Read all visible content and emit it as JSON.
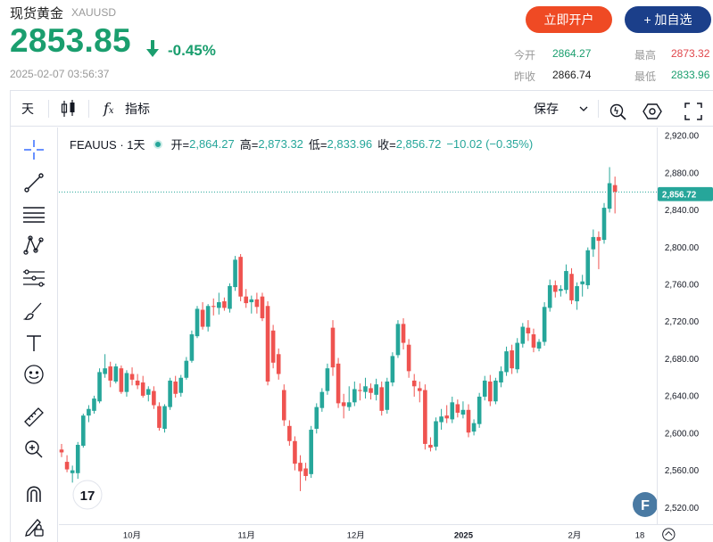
{
  "header": {
    "title": "现货黄金",
    "symbol": "XAUUSD",
    "price": "2853.85",
    "change_pct": "-0.45%",
    "timestamp": "2025-02-07 03:56:37",
    "open_account_label": "立即开户",
    "watchlist_label": "+ 加自选"
  },
  "stats": {
    "open_label": "今开",
    "open": "2864.27",
    "prev_close_label": "昨收",
    "prev_close": "2866.74",
    "high_label": "最高",
    "high": "2873.32",
    "low_label": "最低",
    "low": "2833.96"
  },
  "toolbar": {
    "interval": "天",
    "indicators_label": "指标",
    "save_label": "保存"
  },
  "legend": {
    "symbol": "FEAUUS · 1天",
    "open_label": "开=",
    "open": "2,864.27",
    "high_label": "高=",
    "high": "2,873.32",
    "low_label": "低=",
    "low": "2,833.96",
    "close_label": "收=",
    "close": "2,856.72",
    "change": "−10.02 (−0.35%)"
  },
  "colors": {
    "up": "#26a69a",
    "down": "#ef5350",
    "accent_green": "#1a9e6e",
    "accent_red": "#ef4a24",
    "brand_blue": "#1b3f8a"
  },
  "chart_data": {
    "type": "candlestick",
    "y_ticks": [
      "2,920.00",
      "2,880.00",
      "2,840.00",
      "2,800.00",
      "2,760.00",
      "2,720.00",
      "2,680.00",
      "2,640.00",
      "2,600.00",
      "2,560.00",
      "2,520.00"
    ],
    "x_ticks": [
      "10月",
      "11月",
      "12月",
      "2025",
      "2月",
      "18"
    ],
    "ylim": [
      2505,
      2925
    ],
    "last_price_label": "2,856.72",
    "last_price": 2856.72,
    "candles": [
      {
        "o": 2584,
        "h": 2590,
        "l": 2576,
        "c": 2581
      },
      {
        "o": 2571,
        "h": 2578,
        "l": 2560,
        "c": 2563
      },
      {
        "o": 2559,
        "h": 2567,
        "l": 2549,
        "c": 2562
      },
      {
        "o": 2559,
        "h": 2592,
        "l": 2553,
        "c": 2589
      },
      {
        "o": 2588,
        "h": 2622,
        "l": 2586,
        "c": 2620
      },
      {
        "o": 2620,
        "h": 2631,
        "l": 2613,
        "c": 2627
      },
      {
        "o": 2625,
        "h": 2641,
        "l": 2622,
        "c": 2638
      },
      {
        "o": 2635,
        "h": 2670,
        "l": 2633,
        "c": 2666
      },
      {
        "o": 2664,
        "h": 2685,
        "l": 2660,
        "c": 2670
      },
      {
        "o": 2672,
        "h": 2677,
        "l": 2650,
        "c": 2657
      },
      {
        "o": 2656,
        "h": 2675,
        "l": 2654,
        "c": 2672
      },
      {
        "o": 2670,
        "h": 2673,
        "l": 2643,
        "c": 2645
      },
      {
        "o": 2645,
        "h": 2668,
        "l": 2640,
        "c": 2665
      },
      {
        "o": 2664,
        "h": 2671,
        "l": 2652,
        "c": 2658
      },
      {
        "o": 2657,
        "h": 2664,
        "l": 2648,
        "c": 2652
      },
      {
        "o": 2655,
        "h": 2662,
        "l": 2639,
        "c": 2641
      },
      {
        "o": 2642,
        "h": 2651,
        "l": 2635,
        "c": 2648
      },
      {
        "o": 2646,
        "h": 2651,
        "l": 2627,
        "c": 2631
      },
      {
        "o": 2630,
        "h": 2634,
        "l": 2604,
        "c": 2607
      },
      {
        "o": 2606,
        "h": 2632,
        "l": 2602,
        "c": 2630
      },
      {
        "o": 2629,
        "h": 2660,
        "l": 2626,
        "c": 2657
      },
      {
        "o": 2656,
        "h": 2662,
        "l": 2639,
        "c": 2643
      },
      {
        "o": 2644,
        "h": 2663,
        "l": 2640,
        "c": 2660
      },
      {
        "o": 2660,
        "h": 2682,
        "l": 2658,
        "c": 2678
      },
      {
        "o": 2678,
        "h": 2710,
        "l": 2676,
        "c": 2706
      },
      {
        "o": 2704,
        "h": 2736,
        "l": 2702,
        "c": 2733
      },
      {
        "o": 2732,
        "h": 2740,
        "l": 2711,
        "c": 2714
      },
      {
        "o": 2714,
        "h": 2738,
        "l": 2709,
        "c": 2736
      },
      {
        "o": 2736,
        "h": 2744,
        "l": 2726,
        "c": 2735
      },
      {
        "o": 2734,
        "h": 2750,
        "l": 2727,
        "c": 2740
      },
      {
        "o": 2741,
        "h": 2745,
        "l": 2731,
        "c": 2734
      },
      {
        "o": 2733,
        "h": 2760,
        "l": 2729,
        "c": 2757
      },
      {
        "o": 2756,
        "h": 2789,
        "l": 2752,
        "c": 2785
      },
      {
        "o": 2788,
        "h": 2791,
        "l": 2741,
        "c": 2746
      },
      {
        "o": 2746,
        "h": 2754,
        "l": 2734,
        "c": 2739
      },
      {
        "o": 2740,
        "h": 2747,
        "l": 2728,
        "c": 2743
      },
      {
        "o": 2743,
        "h": 2750,
        "l": 2728,
        "c": 2735
      },
      {
        "o": 2746,
        "h": 2750,
        "l": 2720,
        "c": 2723
      },
      {
        "o": 2736,
        "h": 2741,
        "l": 2652,
        "c": 2656
      },
      {
        "o": 2710,
        "h": 2716,
        "l": 2670,
        "c": 2676
      },
      {
        "o": 2685,
        "h": 2691,
        "l": 2658,
        "c": 2664
      },
      {
        "o": 2647,
        "h": 2653,
        "l": 2609,
        "c": 2615
      },
      {
        "o": 2609,
        "h": 2615,
        "l": 2588,
        "c": 2593
      },
      {
        "o": 2593,
        "h": 2598,
        "l": 2562,
        "c": 2569
      },
      {
        "o": 2570,
        "h": 2578,
        "l": 2540,
        "c": 2561
      },
      {
        "o": 2564,
        "h": 2570,
        "l": 2551,
        "c": 2556
      },
      {
        "o": 2558,
        "h": 2609,
        "l": 2554,
        "c": 2605
      },
      {
        "o": 2606,
        "h": 2633,
        "l": 2601,
        "c": 2629
      },
      {
        "o": 2628,
        "h": 2649,
        "l": 2624,
        "c": 2645
      },
      {
        "o": 2646,
        "h": 2675,
        "l": 2642,
        "c": 2670
      },
      {
        "o": 2713,
        "h": 2721,
        "l": 2662,
        "c": 2671
      },
      {
        "o": 2675,
        "h": 2681,
        "l": 2628,
        "c": 2633
      },
      {
        "o": 2634,
        "h": 2643,
        "l": 2617,
        "c": 2630
      },
      {
        "o": 2629,
        "h": 2651,
        "l": 2625,
        "c": 2634
      },
      {
        "o": 2634,
        "h": 2656,
        "l": 2630,
        "c": 2648
      },
      {
        "o": 2647,
        "h": 2654,
        "l": 2636,
        "c": 2646
      },
      {
        "o": 2645,
        "h": 2660,
        "l": 2638,
        "c": 2651
      },
      {
        "o": 2649,
        "h": 2654,
        "l": 2637,
        "c": 2644
      },
      {
        "o": 2642,
        "h": 2659,
        "l": 2636,
        "c": 2653
      },
      {
        "o": 2650,
        "h": 2656,
        "l": 2620,
        "c": 2625
      },
      {
        "o": 2626,
        "h": 2660,
        "l": 2622,
        "c": 2656
      },
      {
        "o": 2655,
        "h": 2687,
        "l": 2651,
        "c": 2683
      },
      {
        "o": 2684,
        "h": 2721,
        "l": 2681,
        "c": 2717
      },
      {
        "o": 2717,
        "h": 2723,
        "l": 2690,
        "c": 2697
      },
      {
        "o": 2695,
        "h": 2701,
        "l": 2660,
        "c": 2667
      },
      {
        "o": 2657,
        "h": 2664,
        "l": 2640,
        "c": 2651
      },
      {
        "o": 2649,
        "h": 2656,
        "l": 2634,
        "c": 2646
      },
      {
        "o": 2647,
        "h": 2653,
        "l": 2584,
        "c": 2590
      },
      {
        "o": 2589,
        "h": 2597,
        "l": 2582,
        "c": 2586
      },
      {
        "o": 2587,
        "h": 2618,
        "l": 2583,
        "c": 2614
      },
      {
        "o": 2613,
        "h": 2627,
        "l": 2605,
        "c": 2619
      },
      {
        "o": 2620,
        "h": 2631,
        "l": 2612,
        "c": 2617
      },
      {
        "o": 2616,
        "h": 2640,
        "l": 2612,
        "c": 2634
      },
      {
        "o": 2632,
        "h": 2637,
        "l": 2618,
        "c": 2623
      },
      {
        "o": 2621,
        "h": 2635,
        "l": 2617,
        "c": 2626
      },
      {
        "o": 2626,
        "h": 2632,
        "l": 2597,
        "c": 2602
      },
      {
        "o": 2603,
        "h": 2616,
        "l": 2599,
        "c": 2612
      },
      {
        "o": 2611,
        "h": 2644,
        "l": 2607,
        "c": 2640
      },
      {
        "o": 2640,
        "h": 2662,
        "l": 2636,
        "c": 2657
      },
      {
        "o": 2656,
        "h": 2663,
        "l": 2630,
        "c": 2635
      },
      {
        "o": 2635,
        "h": 2660,
        "l": 2632,
        "c": 2657
      },
      {
        "o": 2655,
        "h": 2672,
        "l": 2650,
        "c": 2667
      },
      {
        "o": 2666,
        "h": 2693,
        "l": 2662,
        "c": 2688
      },
      {
        "o": 2689,
        "h": 2695,
        "l": 2664,
        "c": 2670
      },
      {
        "o": 2669,
        "h": 2702,
        "l": 2665,
        "c": 2697
      },
      {
        "o": 2696,
        "h": 2718,
        "l": 2692,
        "c": 2714
      },
      {
        "o": 2713,
        "h": 2721,
        "l": 2699,
        "c": 2707
      },
      {
        "o": 2706,
        "h": 2712,
        "l": 2687,
        "c": 2692
      },
      {
        "o": 2691,
        "h": 2701,
        "l": 2688,
        "c": 2698
      },
      {
        "o": 2698,
        "h": 2740,
        "l": 2694,
        "c": 2735
      },
      {
        "o": 2734,
        "h": 2764,
        "l": 2730,
        "c": 2758
      },
      {
        "o": 2758,
        "h": 2763,
        "l": 2745,
        "c": 2751
      },
      {
        "o": 2752,
        "h": 2758,
        "l": 2746,
        "c": 2754
      },
      {
        "o": 2753,
        "h": 2780,
        "l": 2749,
        "c": 2773
      },
      {
        "o": 2770,
        "h": 2776,
        "l": 2738,
        "c": 2742
      },
      {
        "o": 2741,
        "h": 2761,
        "l": 2732,
        "c": 2757
      },
      {
        "o": 2759,
        "h": 2769,
        "l": 2746,
        "c": 2762
      },
      {
        "o": 2758,
        "h": 2798,
        "l": 2754,
        "c": 2795
      },
      {
        "o": 2796,
        "h": 2817,
        "l": 2788,
        "c": 2809
      },
      {
        "o": 2809,
        "h": 2815,
        "l": 2775,
        "c": 2805
      },
      {
        "o": 2806,
        "h": 2845,
        "l": 2802,
        "c": 2840
      },
      {
        "o": 2839,
        "h": 2883,
        "l": 2835,
        "c": 2866
      },
      {
        "o": 2864,
        "h": 2873,
        "l": 2834,
        "c": 2857
      }
    ]
  }
}
